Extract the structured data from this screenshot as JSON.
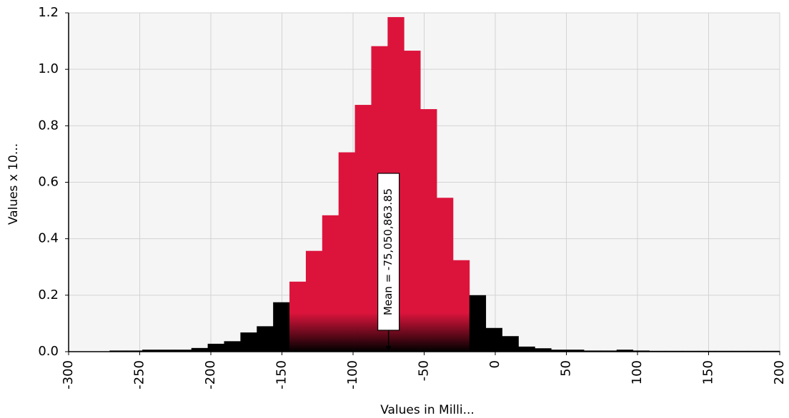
{
  "chart_data": {
    "type": "bar",
    "subtype": "histogram",
    "xlabel": "Values in Milli...",
    "ylabel": "Values x 10...",
    "xlim": [
      -300,
      200
    ],
    "ylim": [
      0,
      1.2
    ],
    "x_ticks": [
      "-300",
      "-250",
      "-200",
      "-150",
      "-100",
      "-50",
      "0",
      "50",
      "100",
      "150",
      "200"
    ],
    "y_ticks": [
      "0.0",
      "0.2",
      "0.4",
      "0.6",
      "0.8",
      "1.0",
      "1.2"
    ],
    "bin_width": 11.5,
    "bins": [
      {
        "x0": -271.2,
        "x1": -259.7,
        "value": 0.004
      },
      {
        "x0": -259.7,
        "x1": -248.2,
        "value": 0.004
      },
      {
        "x0": -248.2,
        "x1": -236.7,
        "value": 0.007
      },
      {
        "x0": -236.7,
        "x1": -225.2,
        "value": 0.007
      },
      {
        "x0": -225.2,
        "x1": -213.7,
        "value": 0.007
      },
      {
        "x0": -213.7,
        "x1": -202.2,
        "value": 0.013
      },
      {
        "x0": -202.2,
        "x1": -190.7,
        "value": 0.028
      },
      {
        "x0": -190.7,
        "x1": -179.2,
        "value": 0.037
      },
      {
        "x0": -179.2,
        "x1": -167.7,
        "value": 0.068
      },
      {
        "x0": -167.7,
        "x1": -156.2,
        "value": 0.09
      },
      {
        "x0": -156.2,
        "x1": -144.7,
        "value": 0.175
      },
      {
        "x0": -144.7,
        "x1": -133.2,
        "value": 0.248
      },
      {
        "x0": -133.2,
        "x1": -121.7,
        "value": 0.357
      },
      {
        "x0": -121.7,
        "x1": -110.2,
        "value": 0.483
      },
      {
        "x0": -110.2,
        "x1": -98.7,
        "value": 0.706
      },
      {
        "x0": -98.7,
        "x1": -87.2,
        "value": 0.874
      },
      {
        "x0": -87.2,
        "x1": -75.7,
        "value": 1.082
      },
      {
        "x0": -75.7,
        "x1": -64.2,
        "value": 1.185
      },
      {
        "x0": -64.2,
        "x1": -52.7,
        "value": 1.066
      },
      {
        "x0": -52.7,
        "x1": -41.2,
        "value": 0.859
      },
      {
        "x0": -41.2,
        "x1": -29.7,
        "value": 0.545
      },
      {
        "x0": -29.7,
        "x1": -18.2,
        "value": 0.324
      },
      {
        "x0": -18.2,
        "x1": -6.7,
        "value": 0.2
      },
      {
        "x0": -6.7,
        "x1": 4.8,
        "value": 0.084
      },
      {
        "x0": 4.8,
        "x1": 16.3,
        "value": 0.055
      },
      {
        "x0": 16.3,
        "x1": 27.8,
        "value": 0.018
      },
      {
        "x0": 27.8,
        "x1": 39.3,
        "value": 0.012
      },
      {
        "x0": 39.3,
        "x1": 50.8,
        "value": 0.007
      },
      {
        "x0": 50.8,
        "x1": 62.3,
        "value": 0.007
      },
      {
        "x0": 62.3,
        "x1": 73.8,
        "value": 0.004
      },
      {
        "x0": 73.8,
        "x1": 85.3,
        "value": 0.004
      },
      {
        "x0": 85.3,
        "x1": 96.8,
        "value": 0.007
      },
      {
        "x0": 96.8,
        "x1": 108.3,
        "value": 0.004
      },
      {
        "x0": 108.3,
        "x1": 119.8,
        "value": 0.003
      },
      {
        "x0": 119.8,
        "x1": 131.3,
        "value": 0.003
      },
      {
        "x0": 131.3,
        "x1": 142.8,
        "value": 0.003
      },
      {
        "x0": 142.8,
        "x1": 154.3,
        "value": 0.003
      },
      {
        "x0": 154.3,
        "x1": 165.8,
        "value": 0.003
      },
      {
        "x0": 165.8,
        "x1": 177.3,
        "value": 0.003
      },
      {
        "x0": 177.3,
        "x1": 188.8,
        "value": 0.003
      },
      {
        "x0": 188.8,
        "x1": 200.0,
        "value": 0.003
      }
    ],
    "highlight_range": [
      -144.7,
      -18.2
    ],
    "mean": -75.05,
    "mean_label": "Mean = -75,050,863.85",
    "grid": true,
    "colors": {
      "highlight": "#dc143c",
      "base": "#000000",
      "plot_background": "#f5f5f5",
      "grid": "#d3d3d3"
    }
  }
}
